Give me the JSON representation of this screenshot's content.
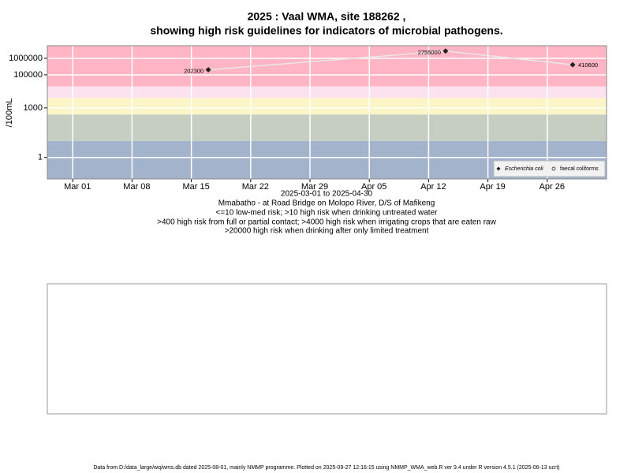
{
  "chart_data": {
    "type": "scatter",
    "title": "2025 : Vaal WMA, site 188262 ,",
    "subtitle": "showing high risk guidelines for indicators of microbial pathogens.",
    "y_label": "/100mL",
    "x_label": "2025-03-01 to 2025-04-30",
    "notes": [
      "Mmabatho - at Road Bridge on Molopo River, D/S of Mafikeng",
      "<=10 low-med risk; >10 high risk when drinking untreated water",
      ">400 high risk from full or partial contact; >4000 high risk when irrigating crops that are eaten raw",
      ">20000 high risk when drinking after only limited treatment"
    ],
    "footer": "Data from D:/data_large/wq/wms.db dated 2025-08-01, mainly NMMP programme. Plotted on 2025-09-27 12:16:15 using NMMP_WMA_web.R ver 9.4 under R version 4.5.1 (2025-06-13 ucrt)",
    "y_log": true,
    "grid": true,
    "legend_position": "bottom-right",
    "xlim": [
      "2025-02-26",
      "2025-05-03"
    ],
    "xticks": [
      {
        "value": "2025-03-01",
        "label": "Mar 01"
      },
      {
        "value": "2025-03-08",
        "label": "Mar 08"
      },
      {
        "value": "2025-03-15",
        "label": "Mar 15"
      },
      {
        "value": "2025-03-22",
        "label": "Mar 22"
      },
      {
        "value": "2025-03-29",
        "label": "Mar 29"
      },
      {
        "value": "2025-04-05",
        "label": "Apr 05"
      },
      {
        "value": "2025-04-12",
        "label": "Apr 12"
      },
      {
        "value": "2025-04-19",
        "label": "Apr 19"
      },
      {
        "value": "2025-04-26",
        "label": "Apr 26"
      }
    ],
    "ylim": [
      0.05,
      5800000
    ],
    "yticks": [
      1,
      1000,
      100000,
      1000000
    ],
    "band_limits": [
      10,
      400,
      4000,
      20000
    ],
    "band_colors": [
      "#a3b3cc",
      "#c6cdc1",
      "#fcf5c7",
      "#fbe2ee",
      "#ffb5c3"
    ],
    "series": [
      {
        "name": "Escherichia coli",
        "color": "#222222",
        "x": [
          "2025-03-17",
          "2025-04-14",
          "2025-04-29"
        ],
        "values": [
          202300,
          2755000,
          410600
        ]
      },
      {
        "name": "faecal coliforms",
        "color": "#222222",
        "x": [],
        "values": []
      }
    ]
  }
}
